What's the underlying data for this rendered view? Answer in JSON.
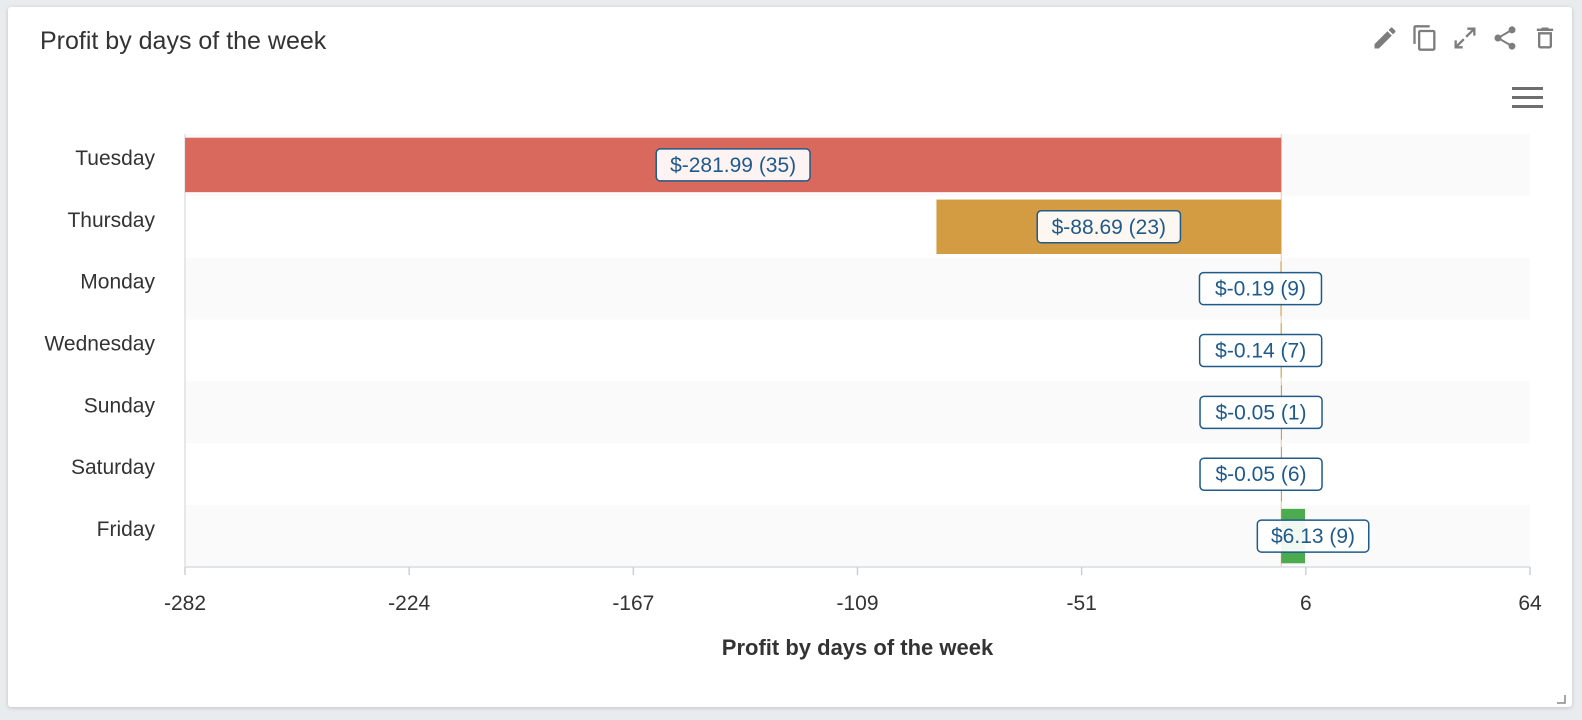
{
  "widget": {
    "title": "Profit by days of the week",
    "toolbar": {
      "icons": [
        "pencil-icon",
        "copy-icon",
        "expand-icon",
        "share-icon",
        "trash-icon"
      ]
    },
    "menu_icon": "hamburger-menu-icon"
  },
  "chart_data": {
    "type": "bar",
    "orientation": "horizontal",
    "xlabel": "Profit by days of the week",
    "ylabel": "",
    "xlim": [
      -282,
      64
    ],
    "xticks": [
      "-282",
      "-224",
      "-167",
      "-109",
      "-51",
      "6",
      "64"
    ],
    "categories": [
      "Tuesday",
      "Thursday",
      "Monday",
      "Wednesday",
      "Sunday",
      "Saturday",
      "Friday"
    ],
    "values": [
      -281.99,
      -88.69,
      -0.19,
      -0.14,
      -0.05,
      -0.05,
      6.13
    ],
    "counts": [
      35,
      23,
      9,
      7,
      1,
      6,
      9
    ],
    "data_labels": [
      "$-281.99 (35)",
      "$-88.69 (23)",
      "$-0.19 (9)",
      "$-0.14 (7)",
      "$-0.05 (1)",
      "$-0.05 (6)",
      "$6.13 (9)"
    ],
    "colors": [
      "#d9695c",
      "#d39c42",
      "#d39c42",
      "#d39c42",
      "#d39c42",
      "#d39c42",
      "#4caa4f"
    ],
    "grid": false,
    "legend": "none"
  }
}
